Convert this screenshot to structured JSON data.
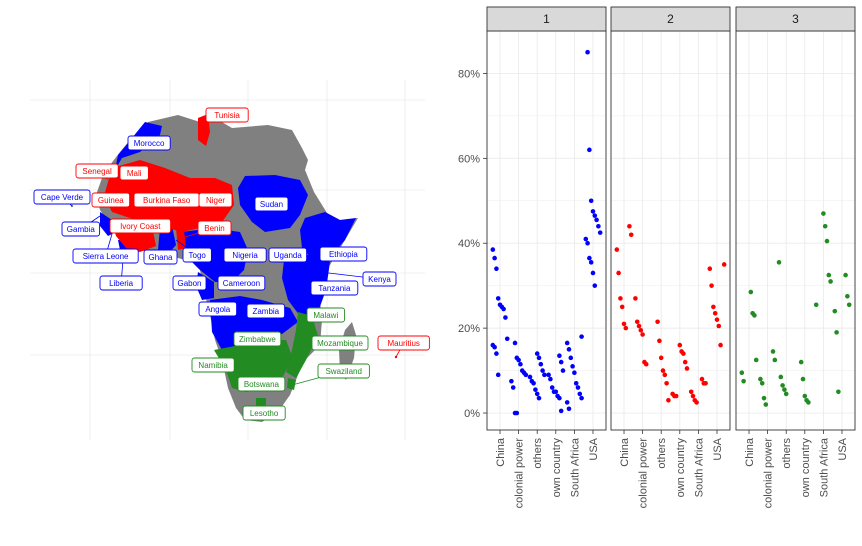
{
  "colors": {
    "cluster_1": "#0000ff",
    "cluster_2": "#ff0000",
    "cluster_3": "#228b22",
    "other_land": "#808080",
    "panel_strip": "#d9d9d9",
    "grid": "#ebebeb"
  },
  "map": {
    "labels": [
      {
        "name": "Tunisia",
        "cluster": 2
      },
      {
        "name": "Morocco",
        "cluster": 1
      },
      {
        "name": "Senegal",
        "cluster": 2
      },
      {
        "name": "Mali",
        "cluster": 2
      },
      {
        "name": "Cape Verde",
        "cluster": 1
      },
      {
        "name": "Guinea",
        "cluster": 2
      },
      {
        "name": "Burkina Faso",
        "cluster": 2
      },
      {
        "name": "Niger",
        "cluster": 2
      },
      {
        "name": "Sudan",
        "cluster": 1
      },
      {
        "name": "Gambia",
        "cluster": 1
      },
      {
        "name": "Ivory Coast",
        "cluster": 2
      },
      {
        "name": "Benin",
        "cluster": 2
      },
      {
        "name": "Ethiopia",
        "cluster": 1
      },
      {
        "name": "Sierra Leone",
        "cluster": 1
      },
      {
        "name": "Ghana",
        "cluster": 1
      },
      {
        "name": "Togo",
        "cluster": 1
      },
      {
        "name": "Nigeria",
        "cluster": 1
      },
      {
        "name": "Uganda",
        "cluster": 1
      },
      {
        "name": "Kenya",
        "cluster": 1
      },
      {
        "name": "Liberia",
        "cluster": 1
      },
      {
        "name": "Gabon",
        "cluster": 1
      },
      {
        "name": "Cameroon",
        "cluster": 1
      },
      {
        "name": "Tanzania",
        "cluster": 1
      },
      {
        "name": "Angola",
        "cluster": 1
      },
      {
        "name": "Zambia",
        "cluster": 1
      },
      {
        "name": "Malawi",
        "cluster": 3
      },
      {
        "name": "Zimbabwe",
        "cluster": 3
      },
      {
        "name": "Mozambique",
        "cluster": 3
      },
      {
        "name": "Mauritius",
        "cluster": 2
      },
      {
        "name": "Namibia",
        "cluster": 3
      },
      {
        "name": "Swaziland",
        "cluster": 3
      },
      {
        "name": "Botswana",
        "cluster": 3
      },
      {
        "name": "Lesotho",
        "cluster": 3
      }
    ]
  },
  "chart_data": {
    "type": "scatter",
    "facets": [
      "1",
      "2",
      "3"
    ],
    "categories": [
      "China",
      "colonial power",
      "others",
      "own country",
      "South Africa",
      "USA"
    ],
    "y_ticks": [
      "0%",
      "20%",
      "40%",
      "60%",
      "80%"
    ],
    "ylim": [
      -0.04,
      0.9
    ],
    "grid": true,
    "legend": "none",
    "xlabel": "",
    "ylabel": "",
    "points": {
      "1": {
        "China": [
          0.385,
          0.365,
          0.34,
          0.27,
          0.255,
          0.25,
          0.245,
          0.225,
          0.175,
          0.16,
          0.155,
          0.14,
          0.09
        ],
        "colonial power": [
          0.165,
          0.13,
          0.125,
          0.115,
          0.1,
          0.095,
          0.09,
          0.075,
          0.06,
          0.0,
          0.0
        ],
        "others": [
          0.14,
          0.13,
          0.115,
          0.1,
          0.09,
          0.085,
          0.075,
          0.07,
          0.055,
          0.045,
          0.035
        ],
        "own country": [
          0.135,
          0.12,
          0.1,
          0.09,
          0.08,
          0.06,
          0.05,
          0.05,
          0.04,
          0.035,
          0.005
        ],
        "South Africa": [
          0.18,
          0.165,
          0.15,
          0.13,
          0.11,
          0.095,
          0.07,
          0.06,
          0.045,
          0.035,
          0.025,
          0.01
        ],
        "USA": [
          0.85,
          0.62,
          0.5,
          0.475,
          0.465,
          0.455,
          0.44,
          0.425,
          0.41,
          0.4,
          0.365,
          0.355,
          0.33,
          0.3
        ]
      },
      "2": {
        "China": [
          0.44,
          0.42,
          0.385,
          0.33,
          0.27,
          0.25,
          0.21,
          0.2
        ],
        "colonial power": [
          0.27,
          0.215,
          0.205,
          0.195,
          0.185,
          0.12,
          0.115
        ],
        "others": [
          0.215,
          0.17,
          0.13,
          0.1,
          0.09,
          0.07,
          0.03
        ],
        "own country": [
          0.16,
          0.145,
          0.14,
          0.12,
          0.105,
          0.045,
          0.04,
          0.04
        ],
        "South Africa": [
          0.08,
          0.07,
          0.07,
          0.05,
          0.04,
          0.03,
          0.025
        ],
        "USA": [
          0.35,
          0.34,
          0.3,
          0.25,
          0.235,
          0.22,
          0.205,
          0.16
        ]
      },
      "3": {
        "China": [
          0.285,
          0.235,
          0.23,
          0.125,
          0.095,
          0.075
        ],
        "colonial power": [
          0.145,
          0.125,
          0.08,
          0.07,
          0.035,
          0.02
        ],
        "others": [
          0.355,
          0.085,
          0.065,
          0.055,
          0.045
        ],
        "own country": [
          0.12,
          0.08,
          0.04,
          0.03,
          0.025
        ],
        "South Africa": [
          0.47,
          0.44,
          0.405,
          0.325,
          0.31,
          0.255
        ],
        "USA": [
          0.325,
          0.275,
          0.255,
          0.24,
          0.19,
          0.05
        ]
      }
    }
  }
}
